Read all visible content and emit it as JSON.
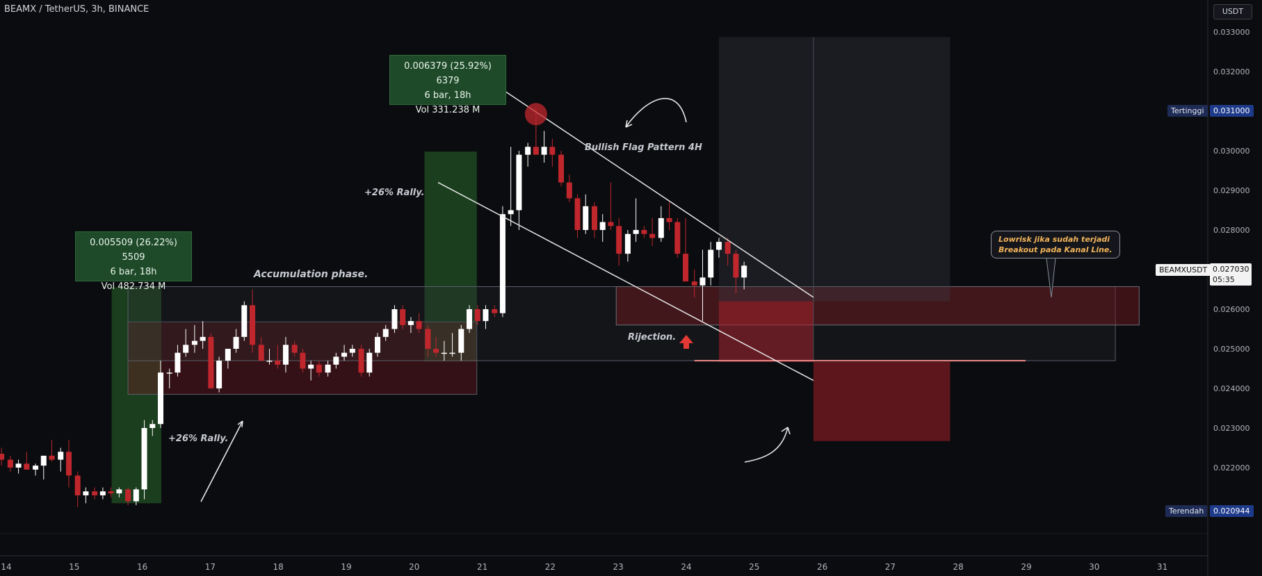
{
  "header": {
    "title": "BEAMX / TetherUS, 3h, BINANCE"
  },
  "currency": "USDT",
  "price_axis": {
    "ticks": [
      "0.033000",
      "0.032000",
      "0.031000",
      "0.030000",
      "0.029000",
      "0.028000",
      "0.027000",
      "0.026000",
      "0.025000",
      "0.024000",
      "0.023000",
      "0.022000"
    ],
    "high_label": "Tertinggi",
    "high_value": "0.031000",
    "low_label": "Terendah",
    "low_value": "0.020944",
    "symbol": "BEAMXUSDT",
    "last_price": "0.027030",
    "countdown": "05:35"
  },
  "time_axis": {
    "ticks": [
      "14",
      "15",
      "16",
      "17",
      "18",
      "19",
      "20",
      "21",
      "22",
      "23",
      "24",
      "25",
      "26",
      "27",
      "28",
      "29",
      "30",
      "31"
    ]
  },
  "measure_boxes": [
    {
      "line1": "0.005509 (26.22%) 5509",
      "line2": "6 bar, 18h",
      "line3": "Vol 482.734 M"
    },
    {
      "line1": "0.006379 (25.92%) 6379",
      "line2": "6 bar, 18h",
      "line3": "Vol 331.238 M"
    }
  ],
  "annotations": {
    "rally_1": "+26% Rally.",
    "rally_2": "+26% Rally.",
    "accumulation": "Accumulation phase.",
    "flag": "Bullish Flag Pattern 4H",
    "rejection": "Rijection.",
    "note_line1": "Lowrisk jika sudah terjadi",
    "note_line2": "Breakout pada Kanal Line."
  },
  "colors": {
    "up": "#ffffff",
    "down": "#c0272d",
    "background": "#0b0c0f",
    "rally_zone": "#2e7d32",
    "demand_zone": "#7a1b22"
  },
  "chart_data": {
    "type": "candlestick",
    "title": "BEAMX / TetherUS, 3h, BINANCE",
    "x_unit": "day-of-month (3h bars)",
    "ylim": [
      0.0206,
      0.0336
    ],
    "x_range": [
      14.0,
      32.0
    ],
    "candles": [
      [
        13.93,
        0.02235,
        0.0225,
        0.02205,
        0.0222
      ],
      [
        14.06,
        0.0222,
        0.0223,
        0.0219,
        0.022
      ],
      [
        14.18,
        0.022,
        0.0222,
        0.02185,
        0.0221
      ],
      [
        14.3,
        0.0221,
        0.0224,
        0.02195,
        0.02195
      ],
      [
        14.43,
        0.02195,
        0.0221,
        0.0218,
        0.02205
      ],
      [
        14.55,
        0.02205,
        0.0223,
        0.0217,
        0.0223
      ],
      [
        14.67,
        0.0223,
        0.0227,
        0.02215,
        0.0222
      ],
      [
        14.8,
        0.0222,
        0.0225,
        0.0219,
        0.0224
      ],
      [
        14.92,
        0.0224,
        0.0227,
        0.0215,
        0.0218
      ],
      [
        15.05,
        0.0218,
        0.0219,
        0.021,
        0.0213
      ],
      [
        15.17,
        0.0213,
        0.0215,
        0.0211,
        0.0214
      ],
      [
        15.3,
        0.0214,
        0.0215,
        0.0212,
        0.0213
      ],
      [
        15.42,
        0.0213,
        0.0215,
        0.0212,
        0.0214
      ],
      [
        15.54,
        0.0214,
        0.0215,
        0.02125,
        0.02135
      ],
      [
        15.66,
        0.02135,
        0.0215,
        0.02125,
        0.02145
      ],
      [
        15.79,
        0.02145,
        0.0215,
        0.02105,
        0.02115
      ],
      [
        15.91,
        0.02115,
        0.0215,
        0.02105,
        0.02145
      ],
      [
        16.03,
        0.02145,
        0.0232,
        0.0212,
        0.023
      ],
      [
        16.15,
        0.023,
        0.0232,
        0.0228,
        0.0231
      ],
      [
        16.27,
        0.0231,
        0.0247,
        0.023,
        0.0244
      ],
      [
        16.4,
        0.0244,
        0.0245,
        0.024,
        0.0244
      ],
      [
        16.52,
        0.0244,
        0.0251,
        0.0243,
        0.0249
      ],
      [
        16.64,
        0.0249,
        0.0255,
        0.0248,
        0.0251
      ],
      [
        16.77,
        0.0251,
        0.0256,
        0.0249,
        0.0252
      ],
      [
        16.89,
        0.0252,
        0.0257,
        0.025,
        0.0253
      ],
      [
        17.01,
        0.0253,
        0.0254,
        0.024,
        0.024
      ],
      [
        17.13,
        0.024,
        0.0248,
        0.0239,
        0.0247
      ],
      [
        17.26,
        0.0247,
        0.025,
        0.0245,
        0.025
      ],
      [
        17.38,
        0.025,
        0.0255,
        0.0249,
        0.0253
      ],
      [
        17.5,
        0.0253,
        0.0262,
        0.0252,
        0.0261
      ],
      [
        17.62,
        0.0261,
        0.0265,
        0.0249,
        0.0251
      ],
      [
        17.75,
        0.0251,
        0.0253,
        0.0247,
        0.0247
      ],
      [
        17.87,
        0.0247,
        0.025,
        0.0246,
        0.0247
      ],
      [
        17.99,
        0.0247,
        0.0251,
        0.0245,
        0.0246
      ],
      [
        18.11,
        0.0246,
        0.0253,
        0.0244,
        0.0251
      ],
      [
        18.24,
        0.0251,
        0.0252,
        0.0248,
        0.0249
      ],
      [
        18.36,
        0.0249,
        0.025,
        0.0244,
        0.0245
      ],
      [
        18.48,
        0.0245,
        0.0247,
        0.0242,
        0.0246
      ],
      [
        18.6,
        0.0246,
        0.0247,
        0.0243,
        0.0244
      ],
      [
        18.73,
        0.0244,
        0.0247,
        0.0243,
        0.0246
      ],
      [
        18.85,
        0.0246,
        0.0249,
        0.0245,
        0.0248
      ],
      [
        18.97,
        0.0248,
        0.0251,
        0.0247,
        0.0249
      ],
      [
        19.09,
        0.0249,
        0.0251,
        0.0248,
        0.025
      ],
      [
        19.22,
        0.025,
        0.0251,
        0.0243,
        0.0244
      ],
      [
        19.34,
        0.0244,
        0.025,
        0.0243,
        0.0249
      ],
      [
        19.46,
        0.0249,
        0.0254,
        0.0248,
        0.0253
      ],
      [
        19.58,
        0.0253,
        0.0256,
        0.0252,
        0.0255
      ],
      [
        19.71,
        0.0255,
        0.0261,
        0.0254,
        0.026
      ],
      [
        19.83,
        0.026,
        0.0261,
        0.0255,
        0.0256
      ],
      [
        19.95,
        0.0256,
        0.0258,
        0.0254,
        0.0257
      ],
      [
        20.07,
        0.0257,
        0.0259,
        0.0254,
        0.0255
      ],
      [
        20.2,
        0.0255,
        0.0256,
        0.0248,
        0.025
      ],
      [
        20.32,
        0.025,
        0.0253,
        0.0248,
        0.0249
      ],
      [
        20.44,
        0.0249,
        0.0252,
        0.0247,
        0.0249
      ],
      [
        20.56,
        0.0249,
        0.0254,
        0.0248,
        0.0249
      ],
      [
        20.69,
        0.0249,
        0.0256,
        0.0247,
        0.0255
      ],
      [
        20.81,
        0.0255,
        0.0261,
        0.0254,
        0.026
      ],
      [
        20.93,
        0.026,
        0.0261,
        0.0256,
        0.0257
      ],
      [
        21.05,
        0.0257,
        0.0261,
        0.0255,
        0.026
      ],
      [
        21.18,
        0.026,
        0.0261,
        0.0258,
        0.0259
      ],
      [
        21.3,
        0.0259,
        0.0286,
        0.0258,
        0.0284
      ],
      [
        21.42,
        0.0284,
        0.0301,
        0.0281,
        0.0285
      ],
      [
        21.54,
        0.0285,
        0.03,
        0.028,
        0.0299
      ],
      [
        21.67,
        0.0299,
        0.0302,
        0.0296,
        0.0301
      ],
      [
        21.79,
        0.0301,
        0.0311,
        0.0299,
        0.0299
      ],
      [
        21.91,
        0.0299,
        0.0305,
        0.0297,
        0.0301
      ],
      [
        22.03,
        0.0301,
        0.0303,
        0.0296,
        0.0299
      ],
      [
        22.16,
        0.0299,
        0.03,
        0.0291,
        0.0292
      ],
      [
        22.28,
        0.0292,
        0.0294,
        0.0287,
        0.0288
      ],
      [
        22.4,
        0.0288,
        0.0289,
        0.0278,
        0.028
      ],
      [
        22.52,
        0.028,
        0.0289,
        0.0279,
        0.0286
      ],
      [
        22.65,
        0.0286,
        0.0287,
        0.0278,
        0.028
      ],
      [
        22.77,
        0.028,
        0.0284,
        0.0277,
        0.0282
      ],
      [
        22.89,
        0.0282,
        0.0292,
        0.028,
        0.0281
      ],
      [
        23.01,
        0.0281,
        0.0283,
        0.0271,
        0.0274
      ],
      [
        23.14,
        0.0274,
        0.028,
        0.0272,
        0.0279
      ],
      [
        23.26,
        0.0279,
        0.0288,
        0.0277,
        0.028
      ],
      [
        23.38,
        0.028,
        0.0281,
        0.0278,
        0.0279
      ],
      [
        23.5,
        0.0279,
        0.0283,
        0.0276,
        0.0278
      ],
      [
        23.63,
        0.0278,
        0.0286,
        0.0277,
        0.0283
      ],
      [
        23.75,
        0.0283,
        0.0287,
        0.028,
        0.0282
      ],
      [
        23.87,
        0.0282,
        0.0283,
        0.0273,
        0.0274
      ],
      [
        23.99,
        0.0274,
        0.0283,
        0.0268,
        0.0267
      ],
      [
        24.12,
        0.0267,
        0.027,
        0.0263,
        0.0266
      ],
      [
        24.24,
        0.0266,
        0.0275,
        0.0257,
        0.0268
      ],
      [
        24.36,
        0.0268,
        0.0277,
        0.0266,
        0.0275
      ],
      [
        24.48,
        0.0275,
        0.0278,
        0.0273,
        0.0277
      ],
      [
        24.61,
        0.0277,
        0.0278,
        0.0271,
        0.0274
      ],
      [
        24.73,
        0.0274,
        0.0275,
        0.0264,
        0.0268
      ],
      [
        24.85,
        0.0268,
        0.0272,
        0.0265,
        0.0271
      ]
    ],
    "trendlines": [
      {
        "name": "channel-upper",
        "x1": 21.25,
        "y1": 0.0316,
        "x2": 25.87,
        "y2": 0.0263
      },
      {
        "name": "channel-lower",
        "x1": 20.35,
        "y1": 0.0292,
        "x2": 25.87,
        "y2": 0.0242
      }
    ],
    "zones": [
      {
        "name": "rally-zone-1",
        "x1": 15.55,
        "x2": 16.28,
        "y1": 0.0211,
        "y2": 0.02655,
        "color": "#2e7d32"
      },
      {
        "name": "rally-zone-2",
        "x1": 20.15,
        "x2": 20.92,
        "y1": 0.02468,
        "y2": 0.02998,
        "color": "#2e7d32"
      },
      {
        "name": "accumulation-range",
        "x1": 15.79,
        "x2": 20.92,
        "y1": 0.02385,
        "y2": 0.02568,
        "color": "#7a1b22"
      },
      {
        "name": "flag-range",
        "x1": 15.79,
        "x2": 30.31,
        "y1": 0.0247,
        "y2": 0.02657,
        "color": "#2a2d36"
      },
      {
        "name": "demand-zone",
        "x1": 22.97,
        "x2": 30.66,
        "y1": 0.0256,
        "y2": 0.02657,
        "color": "#7a1b22"
      }
    ],
    "long_position": {
      "x1": 24.48,
      "x_mid": 25.87,
      "x2": 27.88,
      "entry": 0.0262,
      "target": 0.03287,
      "stop": 0.02467,
      "stop_low": 0.02267
    },
    "horizontal_lines": [
      {
        "name": "stop-line",
        "y": 0.0247,
        "x1": 24.12,
        "x2": 28.99,
        "color": "#f08a8a"
      }
    ],
    "high": 0.031,
    "low": 0.020944,
    "last": 0.02703
  }
}
